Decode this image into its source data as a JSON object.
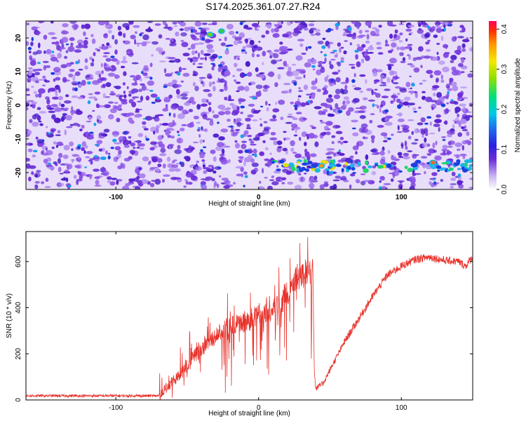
{
  "title": "S174.2025.361.07.27.R24",
  "chart_data": [
    {
      "type": "heatmap",
      "name": "spectrogram",
      "xlabel": "Height of straight line (km)",
      "ylabel": "Frequency (Hz)",
      "xlim": [
        -163,
        150
      ],
      "ylim": [
        -25,
        25
      ],
      "xticks": [
        -100,
        0,
        100
      ],
      "yticks": [
        20,
        10,
        0,
        -10,
        -20
      ],
      "colorbar": {
        "label": "Normalized spectral amplitude",
        "range": [
          0.0,
          0.42
        ],
        "ticks": [
          "0.0",
          "0.1",
          "0.2",
          "0.3",
          "0.4"
        ]
      },
      "features": [
        {
          "description": "elevated band",
          "freq_hz": -18,
          "x_range_km": [
            10,
            150
          ]
        }
      ]
    },
    {
      "type": "line",
      "name": "snr",
      "xlabel": "Height of straight line (km)",
      "ylabel": "SNR (10 * v/v)",
      "xlim": [
        -163,
        150
      ],
      "ylim": [
        0,
        730
      ],
      "xticks": [
        -100,
        0,
        100
      ],
      "yticks": [
        0,
        200,
        400,
        600
      ],
      "color": "#e8322b",
      "trend": {
        "x": [
          -163,
          -70,
          -65,
          -55,
          -45,
          -35,
          -25,
          -15,
          -5,
          5,
          15,
          20,
          25,
          30,
          35,
          38,
          39,
          40,
          45,
          50,
          60,
          70,
          80,
          90,
          100,
          110,
          120,
          130,
          140,
          145,
          150
        ],
        "y": [
          18,
          18,
          50,
          110,
          190,
          250,
          310,
          330,
          350,
          390,
          420,
          460,
          520,
          540,
          560,
          570,
          130,
          50,
          70,
          130,
          250,
          350,
          450,
          540,
          580,
          610,
          620,
          605,
          600,
          580,
          620
        ]
      }
    }
  ]
}
